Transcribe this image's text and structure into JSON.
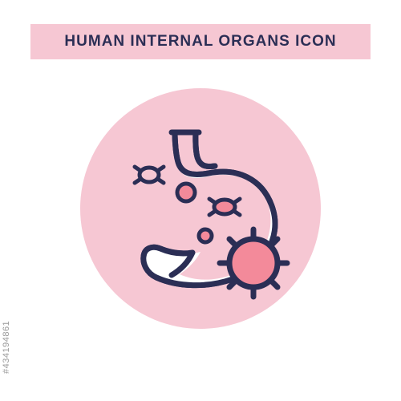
{
  "header": {
    "text": "HUMAN INTERNAL ORGANS ICON",
    "text_color": "#2b2e55",
    "bg_color": "#f6c7d3",
    "fontsize": 19
  },
  "circle": {
    "diameter": 300,
    "bg_color": "#f6c7d3"
  },
  "stock_id": "#434194861",
  "icon": {
    "stroke_color": "#2b2e55",
    "stroke_width": 7,
    "stomach_fill": "#ffffff",
    "virus_fill": "#f38a9a",
    "dot_fill": "#f38a9a",
    "small_bac_fill": "#f6c7d3"
  }
}
